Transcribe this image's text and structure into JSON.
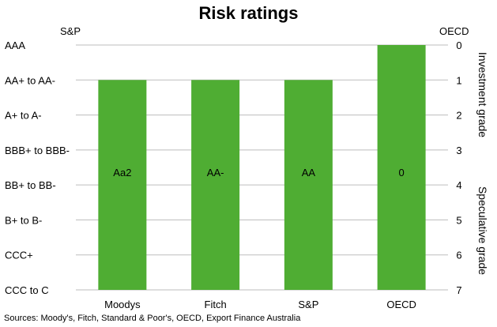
{
  "chart_data": {
    "type": "bar",
    "title": "Risk ratings",
    "left_axis_label": "S&P",
    "right_axis_label": "OECD",
    "left_tick_labels": [
      "AAA",
      "AA+ to AA-",
      "A+ to A-",
      "BBB+ to BBB-",
      "BB+ to BB-",
      "B+ to B-",
      "CCC+",
      "CCC to C"
    ],
    "right_tick_labels": [
      "0",
      "1",
      "2",
      "3",
      "4",
      "5",
      "6",
      "7"
    ],
    "right_axis_group_labels": [
      "Investment grade",
      "Speculative grade"
    ],
    "ylim": [
      0,
      7
    ],
    "y_inverted": true,
    "categories": [
      "Moodys",
      "Fitch",
      "S&P",
      "OECD"
    ],
    "values": [
      1,
      1,
      1,
      0
    ],
    "data_labels": [
      "Aa2",
      "AA-",
      "AA",
      "0"
    ],
    "grid": true,
    "colors": {
      "bar": "#4fad33",
      "grid": "#bdbdbd"
    },
    "source": "Sources: Moody's, Fitch, Standard & Poor's, OECD, Export Finance Australia"
  }
}
